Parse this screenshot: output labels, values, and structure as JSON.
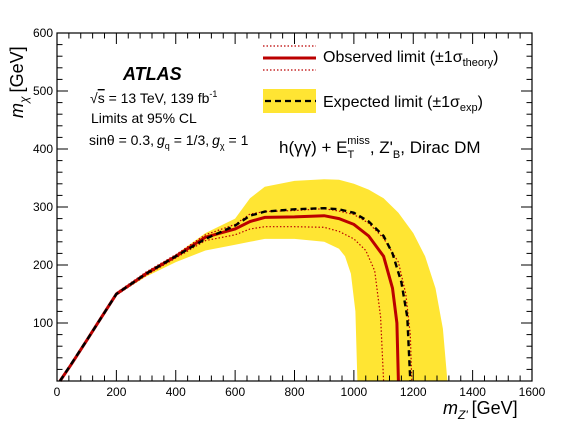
{
  "chart_data": {
    "type": "area",
    "xlabel_main": "m",
    "xlabel_sub": "Z'",
    "xlabel_unit": "[GeV]",
    "ylabel_main": "m",
    "ylabel_sub": "χ",
    "ylabel_unit": "[GeV]",
    "xlim": [
      0,
      1600
    ],
    "ylim": [
      0,
      600
    ],
    "x_ticks": [
      0,
      200,
      400,
      600,
      800,
      1000,
      1200,
      1400,
      1600
    ],
    "y_ticks": [
      100,
      200,
      300,
      400,
      500,
      600
    ],
    "x_tick_labels": [
      "0",
      "200",
      "400",
      "600",
      "800",
      "1000",
      "1200",
      "1400",
      "1600"
    ],
    "y_tick_labels": [
      "100",
      "200",
      "300",
      "400",
      "500",
      "600"
    ],
    "grid": false,
    "legend_position": "top-right",
    "colors": {
      "observed": "#bb0000",
      "expected_band": "#ffe533",
      "expected_line": "#000000"
    },
    "annotations": {
      "experiment": "ATLAS",
      "energy": "√s = 13 TeV, 139 fb⁻¹",
      "cl": "Limits at 95% CL",
      "couplings": "sinθ = 0.3, g_q = 1/3, g_χ = 1",
      "model": "h(γγ) + E_T^miss, Z'_B, Dirac DM"
    },
    "legend": [
      {
        "label": "Observed limit (±1σ_theory)",
        "style": "red solid line with dotted band"
      },
      {
        "label": "Expected limit (±1σ_exp)",
        "style": "black dashed line with yellow band"
      }
    ],
    "series": [
      {
        "name": "Observed limit",
        "style": "solid",
        "points": [
          [
            10,
            0
          ],
          [
            50,
            30
          ],
          [
            100,
            70
          ],
          [
            150,
            110
          ],
          [
            200,
            150
          ],
          [
            300,
            185
          ],
          [
            400,
            215
          ],
          [
            500,
            248
          ],
          [
            600,
            262
          ],
          [
            650,
            275
          ],
          [
            700,
            282
          ],
          [
            800,
            283
          ],
          [
            900,
            285
          ],
          [
            950,
            280
          ],
          [
            1000,
            270
          ],
          [
            1050,
            250
          ],
          [
            1100,
            215
          ],
          [
            1130,
            160
          ],
          [
            1145,
            100
          ],
          [
            1150,
            0
          ]
        ]
      },
      {
        "name": "Observed +1σ theory",
        "style": "dotted",
        "points": [
          [
            10,
            0
          ],
          [
            100,
            72
          ],
          [
            200,
            152
          ],
          [
            300,
            188
          ],
          [
            400,
            218
          ],
          [
            500,
            252
          ],
          [
            600,
            270
          ],
          [
            650,
            288
          ],
          [
            700,
            292
          ],
          [
            800,
            294
          ],
          [
            900,
            297
          ],
          [
            950,
            293
          ],
          [
            1000,
            287
          ],
          [
            1050,
            272
          ],
          [
            1100,
            246
          ],
          [
            1150,
            205
          ],
          [
            1175,
            150
          ],
          [
            1190,
            80
          ],
          [
            1195,
            0
          ]
        ]
      },
      {
        "name": "Observed −1σ theory",
        "style": "dotted",
        "points": [
          [
            10,
            0
          ],
          [
            100,
            68
          ],
          [
            200,
            148
          ],
          [
            300,
            182
          ],
          [
            400,
            212
          ],
          [
            500,
            242
          ],
          [
            600,
            252
          ],
          [
            650,
            262
          ],
          [
            700,
            266
          ],
          [
            800,
            266
          ],
          [
            900,
            265
          ],
          [
            950,
            258
          ],
          [
            1000,
            245
          ],
          [
            1040,
            225
          ],
          [
            1070,
            190
          ],
          [
            1090,
            110
          ],
          [
            1100,
            0
          ]
        ]
      },
      {
        "name": "Expected limit",
        "style": "dashed",
        "points": [
          [
            10,
            0
          ],
          [
            100,
            70
          ],
          [
            200,
            150
          ],
          [
            300,
            185
          ],
          [
            400,
            215
          ],
          [
            500,
            245
          ],
          [
            600,
            268
          ],
          [
            650,
            285
          ],
          [
            700,
            292
          ],
          [
            800,
            296
          ],
          [
            900,
            298
          ],
          [
            950,
            296
          ],
          [
            1000,
            290
          ],
          [
            1050,
            275
          ],
          [
            1100,
            250
          ],
          [
            1130,
            220
          ],
          [
            1160,
            170
          ],
          [
            1180,
            110
          ],
          [
            1190,
            0
          ]
        ]
      }
    ],
    "expected_band": {
      "upper": [
        [
          10,
          0
        ],
        [
          100,
          72
        ],
        [
          200,
          152
        ],
        [
          300,
          188
        ],
        [
          400,
          218
        ],
        [
          500,
          255
        ],
        [
          600,
          280
        ],
        [
          650,
          315
        ],
        [
          700,
          335
        ],
        [
          800,
          345
        ],
        [
          900,
          348
        ],
        [
          950,
          347
        ],
        [
          1000,
          340
        ],
        [
          1050,
          330
        ],
        [
          1100,
          315
        ],
        [
          1150,
          290
        ],
        [
          1200,
          255
        ],
        [
          1240,
          215
        ],
        [
          1275,
          160
        ],
        [
          1300,
          90
        ],
        [
          1315,
          0
        ]
      ],
      "lower": [
        [
          10,
          0
        ],
        [
          100,
          68
        ],
        [
          200,
          148
        ],
        [
          300,
          180
        ],
        [
          400,
          205
        ],
        [
          500,
          225
        ],
        [
          600,
          235
        ],
        [
          650,
          240
        ],
        [
          700,
          245
        ],
        [
          800,
          245
        ],
        [
          900,
          240
        ],
        [
          950,
          228
        ],
        [
          970,
          215
        ],
        [
          990,
          185
        ],
        [
          1005,
          120
        ],
        [
          1012,
          0
        ]
      ]
    }
  }
}
